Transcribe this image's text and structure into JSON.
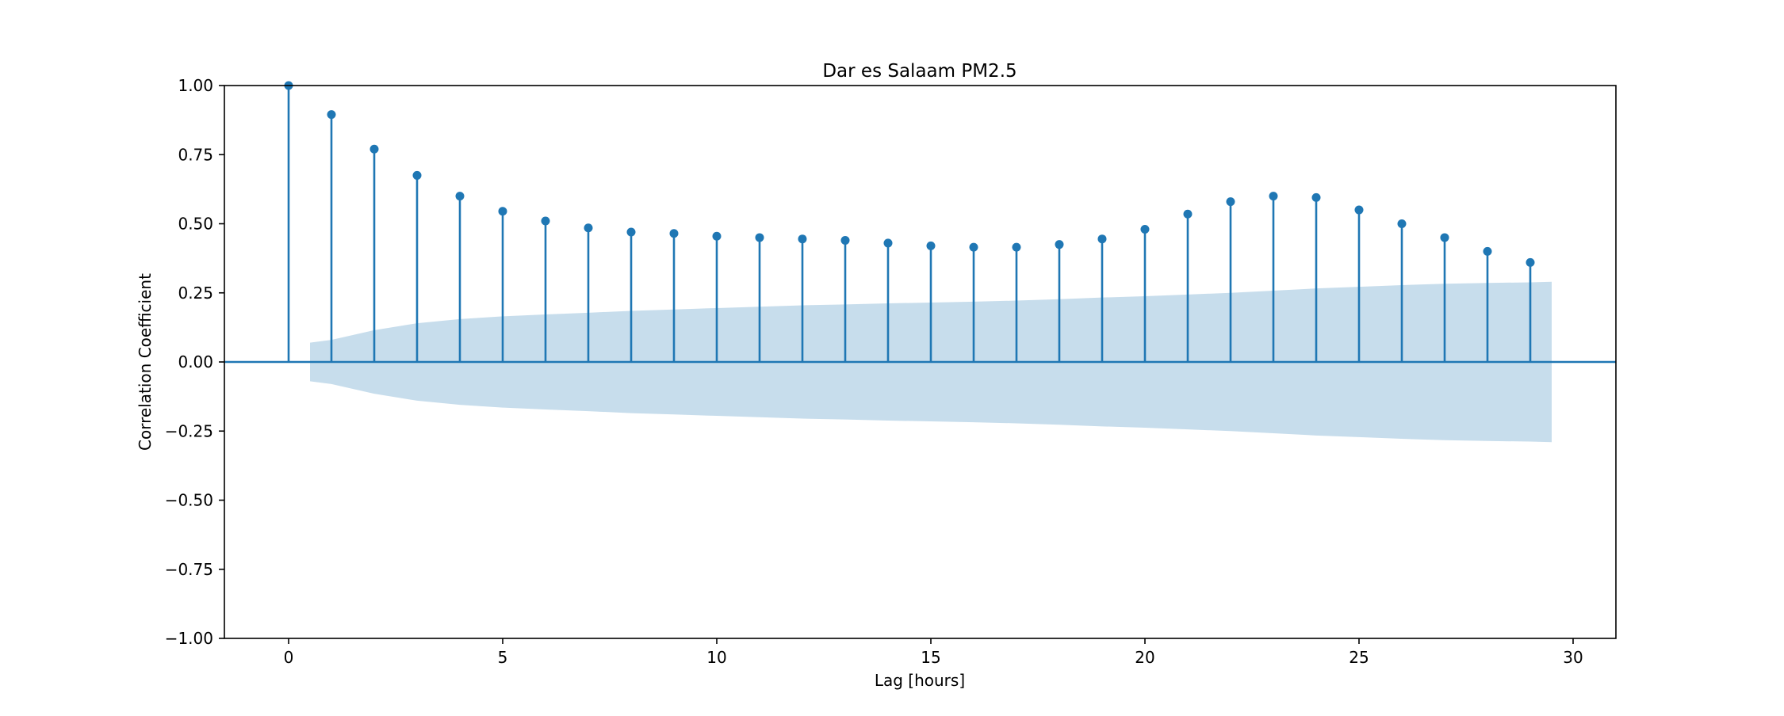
{
  "chart_data": {
    "type": "stem",
    "title": "Dar es Salaam PM2.5",
    "xlabel": "Lag [hours]",
    "ylabel": "Correlation Coefficient",
    "xlim": [
      -1.5,
      31
    ],
    "ylim": [
      -1.0,
      1.0
    ],
    "x_ticks": [
      0,
      5,
      10,
      15,
      20,
      25,
      30
    ],
    "y_ticks": [
      -1.0,
      -0.75,
      -0.5,
      -0.25,
      0.0,
      0.25,
      0.5,
      0.75,
      1.0
    ],
    "x_tick_labels": [
      "0",
      "5",
      "10",
      "15",
      "20",
      "25",
      "30"
    ],
    "y_tick_labels": [
      "−1.00",
      "−0.75",
      "−0.50",
      "−0.25",
      "0.00",
      "0.25",
      "0.50",
      "0.75",
      "1.00"
    ],
    "grid": false,
    "colors": {
      "stem": "#1f77b4",
      "band": "#1f77b4"
    },
    "series": [
      {
        "x": [
          0,
          1,
          2,
          3,
          4,
          5,
          6,
          7,
          8,
          9,
          10,
          11,
          12,
          13,
          14,
          15,
          16,
          17,
          18,
          19,
          20,
          21,
          22,
          23,
          24,
          25,
          26,
          27,
          28,
          29
        ],
        "values": [
          1.0,
          0.895,
          0.77,
          0.675,
          0.6,
          0.545,
          0.51,
          0.485,
          0.47,
          0.465,
          0.455,
          0.45,
          0.445,
          0.44,
          0.43,
          0.42,
          0.415,
          0.415,
          0.425,
          0.445,
          0.48,
          0.535,
          0.58,
          0.6,
          0.595,
          0.55,
          0.5,
          0.45,
          0.4,
          0.36
        ]
      }
    ],
    "confidence_band": {
      "x": [
        0.5,
        1,
        2,
        3,
        4,
        5,
        6,
        7,
        8,
        9,
        10,
        11,
        12,
        13,
        14,
        15,
        16,
        17,
        18,
        19,
        20,
        21,
        22,
        23,
        24,
        25,
        26,
        27,
        28,
        29,
        29.5
      ],
      "upper": [
        0.07,
        0.08,
        0.115,
        0.14,
        0.155,
        0.165,
        0.172,
        0.178,
        0.185,
        0.19,
        0.195,
        0.2,
        0.205,
        0.208,
        0.212,
        0.215,
        0.218,
        0.222,
        0.227,
        0.233,
        0.238,
        0.244,
        0.25,
        0.258,
        0.266,
        0.272,
        0.278,
        0.283,
        0.286,
        0.288,
        0.29
      ]
    }
  }
}
